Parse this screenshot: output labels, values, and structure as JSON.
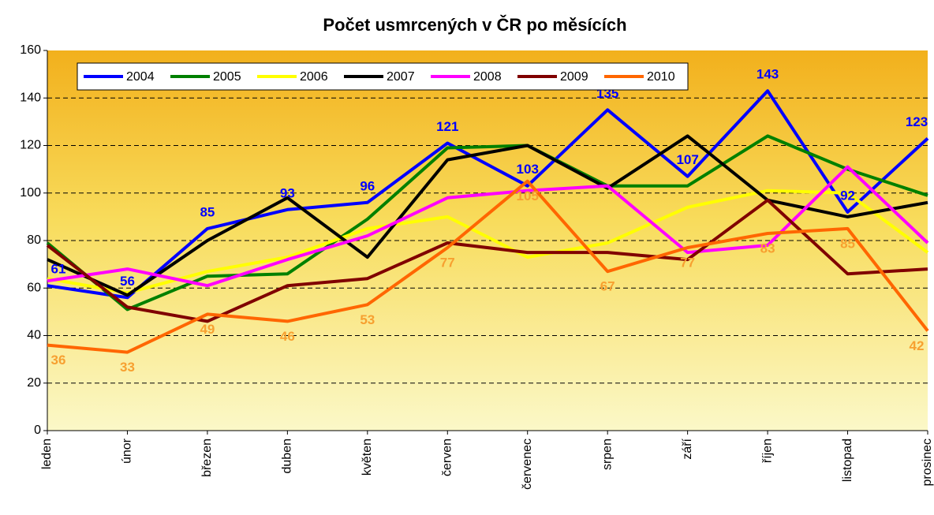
{
  "chart_data": {
    "type": "line",
    "title": "Počet usmrcených v ČR po měsících",
    "categories": [
      "leden",
      "únor",
      "březen",
      "duben",
      "květen",
      "červen",
      "červenec",
      "srpen",
      "září",
      "říjen",
      "listopad",
      "prosinec"
    ],
    "ylim": [
      0,
      160
    ],
    "yticks": [
      0,
      20,
      40,
      60,
      80,
      100,
      120,
      140,
      160
    ],
    "grid": true,
    "legend": "top",
    "series": [
      {
        "name": "2004",
        "color": "#0000ff",
        "labels": true,
        "values": [
          61,
          56,
          85,
          93,
          96,
          121,
          103,
          135,
          107,
          143,
          92,
          123
        ]
      },
      {
        "name": "2005",
        "color": "#008000",
        "values": [
          79,
          51,
          65,
          66,
          89,
          119,
          120,
          103,
          103,
          124,
          110,
          99
        ]
      },
      {
        "name": "2006",
        "color": "#ffff00",
        "values": [
          64,
          58,
          67,
          73,
          85,
          90,
          73,
          79,
          94,
          101,
          100,
          75
        ]
      },
      {
        "name": "2007",
        "color": "#000000",
        "values": [
          72,
          57,
          80,
          98,
          73,
          114,
          120,
          102,
          124,
          97,
          90,
          96
        ]
      },
      {
        "name": "2008",
        "color": "#ff00ff",
        "values": [
          63,
          68,
          61,
          72,
          82,
          98,
          101,
          103,
          75,
          78,
          111,
          79
        ]
      },
      {
        "name": "2009",
        "color": "#800000",
        "values": [
          78,
          52,
          46,
          61,
          64,
          79,
          75,
          75,
          72,
          97,
          66,
          68
        ]
      },
      {
        "name": "2010",
        "color": "#ff6600",
        "labels": true,
        "values": [
          36,
          33,
          49,
          46,
          53,
          77,
          105,
          67,
          77,
          83,
          85,
          42
        ]
      }
    ]
  }
}
